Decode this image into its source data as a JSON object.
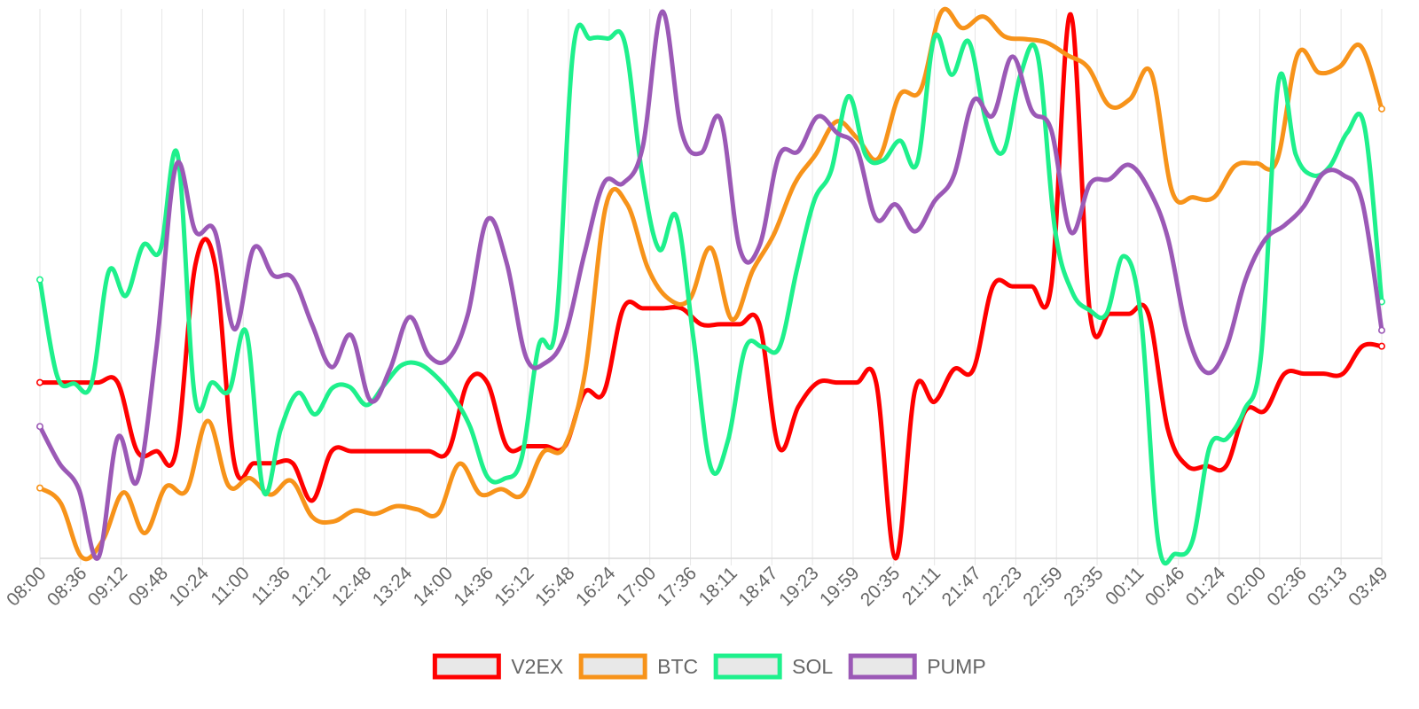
{
  "chart_data": {
    "type": "line",
    "title": "",
    "xlabel": "",
    "ylabel": "",
    "ylim": [
      0,
      100
    ],
    "grid": true,
    "legend_position": "bottom-center",
    "x_tick_labels": [
      "08:00",
      "08:36",
      "09:12",
      "09:48",
      "10:24",
      "11:00",
      "11:36",
      "12:12",
      "12:48",
      "13:24",
      "14:00",
      "14:36",
      "15:12",
      "15:48",
      "16:24",
      "17:00",
      "17:36",
      "18:11",
      "18:47",
      "19:23",
      "19:59",
      "20:35",
      "21:11",
      "21:47",
      "22:23",
      "22:59",
      "23:35",
      "00:11",
      "00:46",
      "01:24",
      "02:00",
      "02:36",
      "03:13",
      "03:49"
    ],
    "series": [
      {
        "name": "V2EX",
        "color": "#ff0000",
        "values": [
          32,
          32,
          32,
          32,
          32,
          19.5,
          19.5,
          19.5,
          53.5,
          53.5,
          17.3,
          17.3,
          17.3,
          17.3,
          10.5,
          19.5,
          19.5,
          19.5,
          19.5,
          19.5,
          19.5,
          19.5,
          32,
          32,
          20.4,
          20.4,
          20.4,
          20.4,
          30.2,
          30.2,
          45.5,
          45.5,
          45.5,
          45.5,
          42.6,
          42.6,
          42.6,
          42.6,
          20.2,
          27.6,
          32,
          32,
          32,
          32,
          0,
          30.6,
          28.5,
          34.4,
          34.4,
          49.5,
          49.5,
          49.5,
          49.5,
          99,
          44.5,
          44.5,
          44.5,
          44.5,
          23.5,
          16.8,
          16.8,
          16.8,
          26.9,
          26.9,
          33.6,
          33.6,
          33.6,
          33.6,
          38.6,
          38.6
        ]
      },
      {
        "name": "BTC",
        "color": "#f7931a",
        "values": [
          12.8,
          10,
          0.2,
          3.3,
          12,
          4.6,
          13,
          12.4,
          25,
          13.2,
          14.6,
          11.6,
          14.1,
          7.5,
          6.7,
          8.7,
          8.1,
          9.5,
          8.9,
          8.2,
          17.2,
          11.7,
          12.6,
          11.5,
          19.3,
          20.2,
          33.8,
          64.2,
          64.5,
          52.8,
          47.2,
          47.2,
          56.5,
          43.5,
          52.4,
          58.9,
          68.2,
          73.5,
          79.5,
          76.4,
          72.8,
          84.3,
          85.2,
          99.5,
          96.5,
          98.6,
          95,
          94.5,
          93.9,
          91.6,
          89.3,
          82.4,
          83.6,
          88.4,
          66.8,
          65.7,
          65.7,
          71.4,
          71.9,
          72.4,
          91.8,
          88.4,
          89.5,
          93.2,
          81.8
        ]
      },
      {
        "name": "SOL",
        "color": "#1ef08c",
        "values": [
          50.7,
          33.2,
          31.8,
          31.8,
          52.2,
          47.8,
          57,
          56.1,
          73.5,
          29.5,
          32,
          30.5,
          41.1,
          12.2,
          23.5,
          30.1,
          26.2,
          31,
          31.2,
          27.9,
          31.5,
          35.1,
          35.4,
          33.2,
          29.5,
          24,
          14.9,
          14.5,
          18.2,
          38.7,
          42.5,
          92.5,
          94.6,
          94.6,
          93.8,
          70,
          56.2,
          62.2,
          39.8,
          16.5,
          21.5,
          38.2,
          38.5,
          38.5,
          52.5,
          65,
          70.6,
          84.1,
          73.4,
          72.4,
          76,
          72,
          94.8,
          88,
          94,
          79.5,
          74,
          88,
          91.5,
          60,
          48.5,
          45.2,
          44.5,
          55,
          44,
          3.2,
          0.8,
          3.2,
          20.3,
          21.8,
          26.9,
          37.4,
          86.8,
          73.5,
          69.7,
          71.4,
          77.5,
          78.5,
          46.7
        ]
      },
      {
        "name": "PUMP",
        "color": "#9b59b6",
        "values": [
          24,
          17.3,
          12.6,
          0.1,
          22,
          14,
          38.5,
          71.5,
          59.5,
          59.5,
          41.7,
          56.5,
          51.5,
          51,
          42.5,
          34.8,
          40.6,
          28.7,
          34.4,
          43.9,
          36.9,
          36.3,
          44.3,
          61.6,
          53.8,
          36.6,
          35.6,
          40.6,
          55.4,
          68.3,
          68.3,
          74.9,
          99.5,
          77.6,
          73.8,
          79.9,
          56.2,
          56.9,
          73.2,
          74.1,
          80.4,
          77.4,
          74.6,
          61.8,
          64.4,
          59.5,
          65,
          69.7,
          83.3,
          80.6,
          91.3,
          81.5,
          78,
          59.4,
          68.2,
          69,
          71.6,
          67.3,
          58.3,
          41,
          33.8,
          38.3,
          50.8,
          58,
          60.6,
          64.1,
          70.1,
          69.8,
          64.8,
          41.5
        ]
      }
    ]
  }
}
